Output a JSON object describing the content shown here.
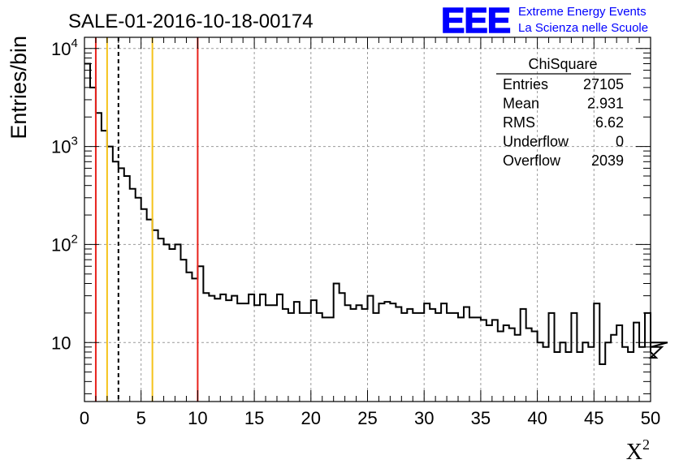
{
  "chart_data": {
    "type": "histogram",
    "title": "SALE-01-2016-10-18-00174",
    "xlabel": "X",
    "xlabel_superscript": "2",
    "ylabel": "Entries/bin",
    "xlim": [
      0,
      50
    ],
    "ylim": [
      2.5,
      13000
    ],
    "yscale": "log",
    "grid": true,
    "bin_width": 0.5,
    "x_ticks": [
      "0",
      "5",
      "10",
      "15",
      "20",
      "25",
      "30",
      "35",
      "40",
      "45",
      "50"
    ],
    "y_ticks": [
      {
        "value": 10,
        "base": "10",
        "exp": ""
      },
      {
        "value": 100,
        "base": "10",
        "exp": "2"
      },
      {
        "value": 1000,
        "base": "10",
        "exp": "3"
      },
      {
        "value": 10000,
        "base": "10",
        "exp": "4"
      }
    ],
    "values": [
      7000,
      4000,
      2200,
      1450,
      1000,
      700,
      600,
      500,
      370,
      300,
      230,
      180,
      140,
      115,
      100,
      90,
      100,
      70,
      52,
      45,
      60,
      32,
      30,
      28,
      31,
      27,
      30,
      25,
      25,
      31,
      24,
      31,
      24,
      24,
      31,
      22,
      20,
      26,
      20,
      20,
      27,
      20,
      18,
      18,
      40,
      32,
      24,
      22,
      24,
      22,
      30,
      20,
      25,
      26,
      25,
      23,
      20,
      22,
      20,
      20,
      25,
      22,
      20,
      25,
      20,
      20,
      18,
      23,
      18,
      18,
      17,
      15,
      17,
      13,
      15,
      14,
      12,
      22,
      14,
      13,
      10,
      9,
      20,
      8,
      10,
      8,
      20,
      8,
      10,
      9,
      25,
      6,
      10,
      12,
      15,
      9,
      8,
      16,
      9,
      20,
      8,
      7,
      9,
      10
    ],
    "vertical_lines": [
      {
        "x": 1,
        "color": "#e8221c",
        "style": "solid"
      },
      {
        "x": 2,
        "color": "#f5c31a",
        "style": "solid"
      },
      {
        "x": 3,
        "color": "#000000",
        "style": "dashed"
      },
      {
        "x": 6,
        "color": "#f5c31a",
        "style": "solid"
      },
      {
        "x": 10,
        "color": "#e8221c",
        "style": "solid"
      }
    ],
    "stats": {
      "title": "ChiSquare",
      "rows": [
        {
          "label": "Entries",
          "value": "27105"
        },
        {
          "label": "Mean",
          "value": "2.931"
        },
        {
          "label": "RMS",
          "value": "6.62"
        },
        {
          "label": "Underflow",
          "value": "0"
        },
        {
          "label": "Overflow",
          "value": "2039"
        }
      ]
    },
    "logo": {
      "mark": "EEE",
      "line1": "Extreme Energy Events",
      "line2": "La Scienza nelle Scuole",
      "color": "#0000ff"
    }
  }
}
